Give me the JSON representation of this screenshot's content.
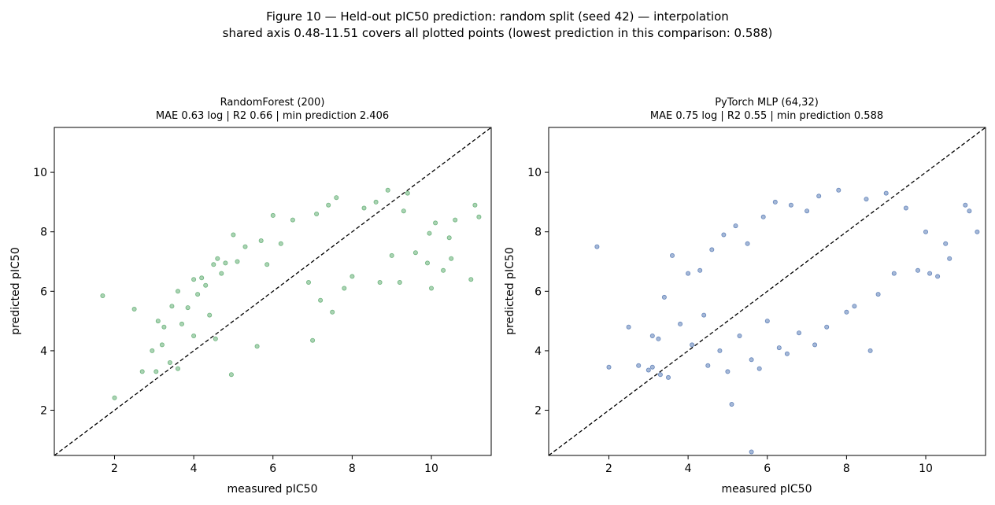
{
  "figure": {
    "title_line1": "Figure 10 — Held-out pIC50 prediction: random split (seed 42) — interpolation",
    "title_line2": "shared axis 0.48-11.51 covers all plotted points (lowest prediction in this comparison: 0.588)"
  },
  "chart_data": [
    {
      "type": "scatter",
      "title_line1": "RandomForest (200)",
      "title_line2": "MAE 0.63 log | R2 0.66 | min prediction 2.406",
      "xlabel": "measured pIC50",
      "ylabel": "predicted pIC50",
      "xlim": [
        0.48,
        11.51
      ],
      "ylim": [
        0.48,
        11.51
      ],
      "xticks": [
        2,
        4,
        6,
        8,
        10
      ],
      "yticks": [
        2,
        4,
        6,
        8,
        10
      ],
      "reference_line": "y = x (dashed, black)",
      "color": "#55a868",
      "grid": false,
      "points": [
        [
          1.7,
          5.85
        ],
        [
          2.0,
          2.42
        ],
        [
          2.5,
          5.4
        ],
        [
          2.7,
          3.3
        ],
        [
          2.95,
          4.0
        ],
        [
          3.05,
          3.3
        ],
        [
          3.1,
          5.0
        ],
        [
          3.2,
          4.2
        ],
        [
          3.25,
          4.8
        ],
        [
          3.4,
          3.6
        ],
        [
          3.45,
          5.5
        ],
        [
          3.6,
          6.0
        ],
        [
          3.6,
          3.4
        ],
        [
          3.7,
          4.9
        ],
        [
          3.85,
          5.45
        ],
        [
          4.0,
          6.4
        ],
        [
          4.0,
          4.5
        ],
        [
          4.1,
          5.9
        ],
        [
          4.2,
          6.45
        ],
        [
          4.3,
          6.2
        ],
        [
          4.4,
          5.2
        ],
        [
          4.5,
          6.9
        ],
        [
          4.55,
          4.4
        ],
        [
          4.6,
          7.1
        ],
        [
          4.7,
          6.6
        ],
        [
          4.8,
          6.95
        ],
        [
          4.95,
          3.2
        ],
        [
          5.0,
          7.9
        ],
        [
          5.1,
          7.0
        ],
        [
          5.3,
          7.5
        ],
        [
          5.6,
          4.15
        ],
        [
          5.7,
          7.7
        ],
        [
          5.85,
          6.9
        ],
        [
          6.0,
          8.55
        ],
        [
          6.2,
          7.6
        ],
        [
          6.5,
          8.4
        ],
        [
          6.9,
          6.3
        ],
        [
          7.0,
          4.35
        ],
        [
          7.1,
          8.6
        ],
        [
          7.2,
          5.7
        ],
        [
          7.4,
          8.9
        ],
        [
          7.5,
          5.3
        ],
        [
          7.6,
          9.15
        ],
        [
          7.8,
          6.1
        ],
        [
          8.0,
          6.5
        ],
        [
          8.3,
          8.8
        ],
        [
          8.6,
          9.0
        ],
        [
          8.7,
          6.3
        ],
        [
          8.9,
          9.4
        ],
        [
          9.0,
          7.2
        ],
        [
          9.2,
          6.3
        ],
        [
          9.3,
          8.7
        ],
        [
          9.4,
          9.3
        ],
        [
          9.6,
          7.3
        ],
        [
          9.9,
          6.95
        ],
        [
          9.95,
          7.95
        ],
        [
          10.0,
          6.1
        ],
        [
          10.1,
          8.3
        ],
        [
          10.3,
          6.7
        ],
        [
          10.45,
          7.8
        ],
        [
          10.5,
          7.1
        ],
        [
          10.6,
          8.4
        ],
        [
          11.0,
          6.4
        ],
        [
          11.1,
          8.9
        ],
        [
          11.2,
          8.5
        ]
      ]
    },
    {
      "type": "scatter",
      "title_line1": "PyTorch MLP (64,32)",
      "title_line2": "MAE 0.75 log | R2 0.55 | min prediction 0.588",
      "xlabel": "measured pIC50",
      "ylabel": "predicted pIC50",
      "xlim": [
        0.48,
        11.51
      ],
      "ylim": [
        0.48,
        11.51
      ],
      "xticks": [
        2,
        4,
        6,
        8,
        10
      ],
      "yticks": [
        2,
        4,
        6,
        8,
        10
      ],
      "reference_line": "y = x (dashed, black)",
      "color": "#4c72b0",
      "grid": false,
      "points": [
        [
          1.7,
          7.5
        ],
        [
          2.0,
          3.45
        ],
        [
          2.5,
          4.8
        ],
        [
          2.75,
          3.5
        ],
        [
          3.0,
          3.35
        ],
        [
          3.1,
          4.5
        ],
        [
          3.1,
          3.45
        ],
        [
          3.25,
          4.4
        ],
        [
          3.3,
          3.2
        ],
        [
          3.4,
          5.8
        ],
        [
          3.5,
          3.1
        ],
        [
          3.6,
          7.2
        ],
        [
          3.8,
          4.9
        ],
        [
          4.0,
          6.6
        ],
        [
          4.1,
          4.2
        ],
        [
          4.3,
          6.7
        ],
        [
          4.4,
          5.2
        ],
        [
          4.5,
          3.5
        ],
        [
          4.6,
          7.4
        ],
        [
          4.8,
          4.0
        ],
        [
          4.9,
          7.9
        ],
        [
          5.0,
          3.3
        ],
        [
          5.1,
          2.2
        ],
        [
          5.2,
          8.2
        ],
        [
          5.3,
          4.5
        ],
        [
          5.5,
          7.6
        ],
        [
          5.6,
          3.7
        ],
        [
          5.6,
          0.6
        ],
        [
          5.8,
          3.4
        ],
        [
          5.9,
          8.5
        ],
        [
          6.0,
          5.0
        ],
        [
          6.2,
          9.0
        ],
        [
          6.3,
          4.1
        ],
        [
          6.5,
          3.9
        ],
        [
          6.6,
          8.9
        ],
        [
          6.8,
          4.6
        ],
        [
          7.0,
          8.7
        ],
        [
          7.2,
          4.2
        ],
        [
          7.3,
          9.2
        ],
        [
          7.5,
          4.8
        ],
        [
          7.8,
          9.4
        ],
        [
          8.0,
          5.3
        ],
        [
          8.2,
          5.5
        ],
        [
          8.5,
          9.1
        ],
        [
          8.6,
          4.0
        ],
        [
          8.8,
          5.9
        ],
        [
          9.0,
          9.3
        ],
        [
          9.2,
          6.6
        ],
        [
          9.5,
          8.8
        ],
        [
          9.8,
          6.7
        ],
        [
          10.0,
          8.0
        ],
        [
          10.1,
          6.6
        ],
        [
          10.3,
          6.5
        ],
        [
          10.5,
          7.6
        ],
        [
          10.6,
          7.1
        ],
        [
          11.0,
          8.9
        ],
        [
          11.1,
          8.7
        ],
        [
          11.3,
          8.0
        ]
      ]
    }
  ]
}
